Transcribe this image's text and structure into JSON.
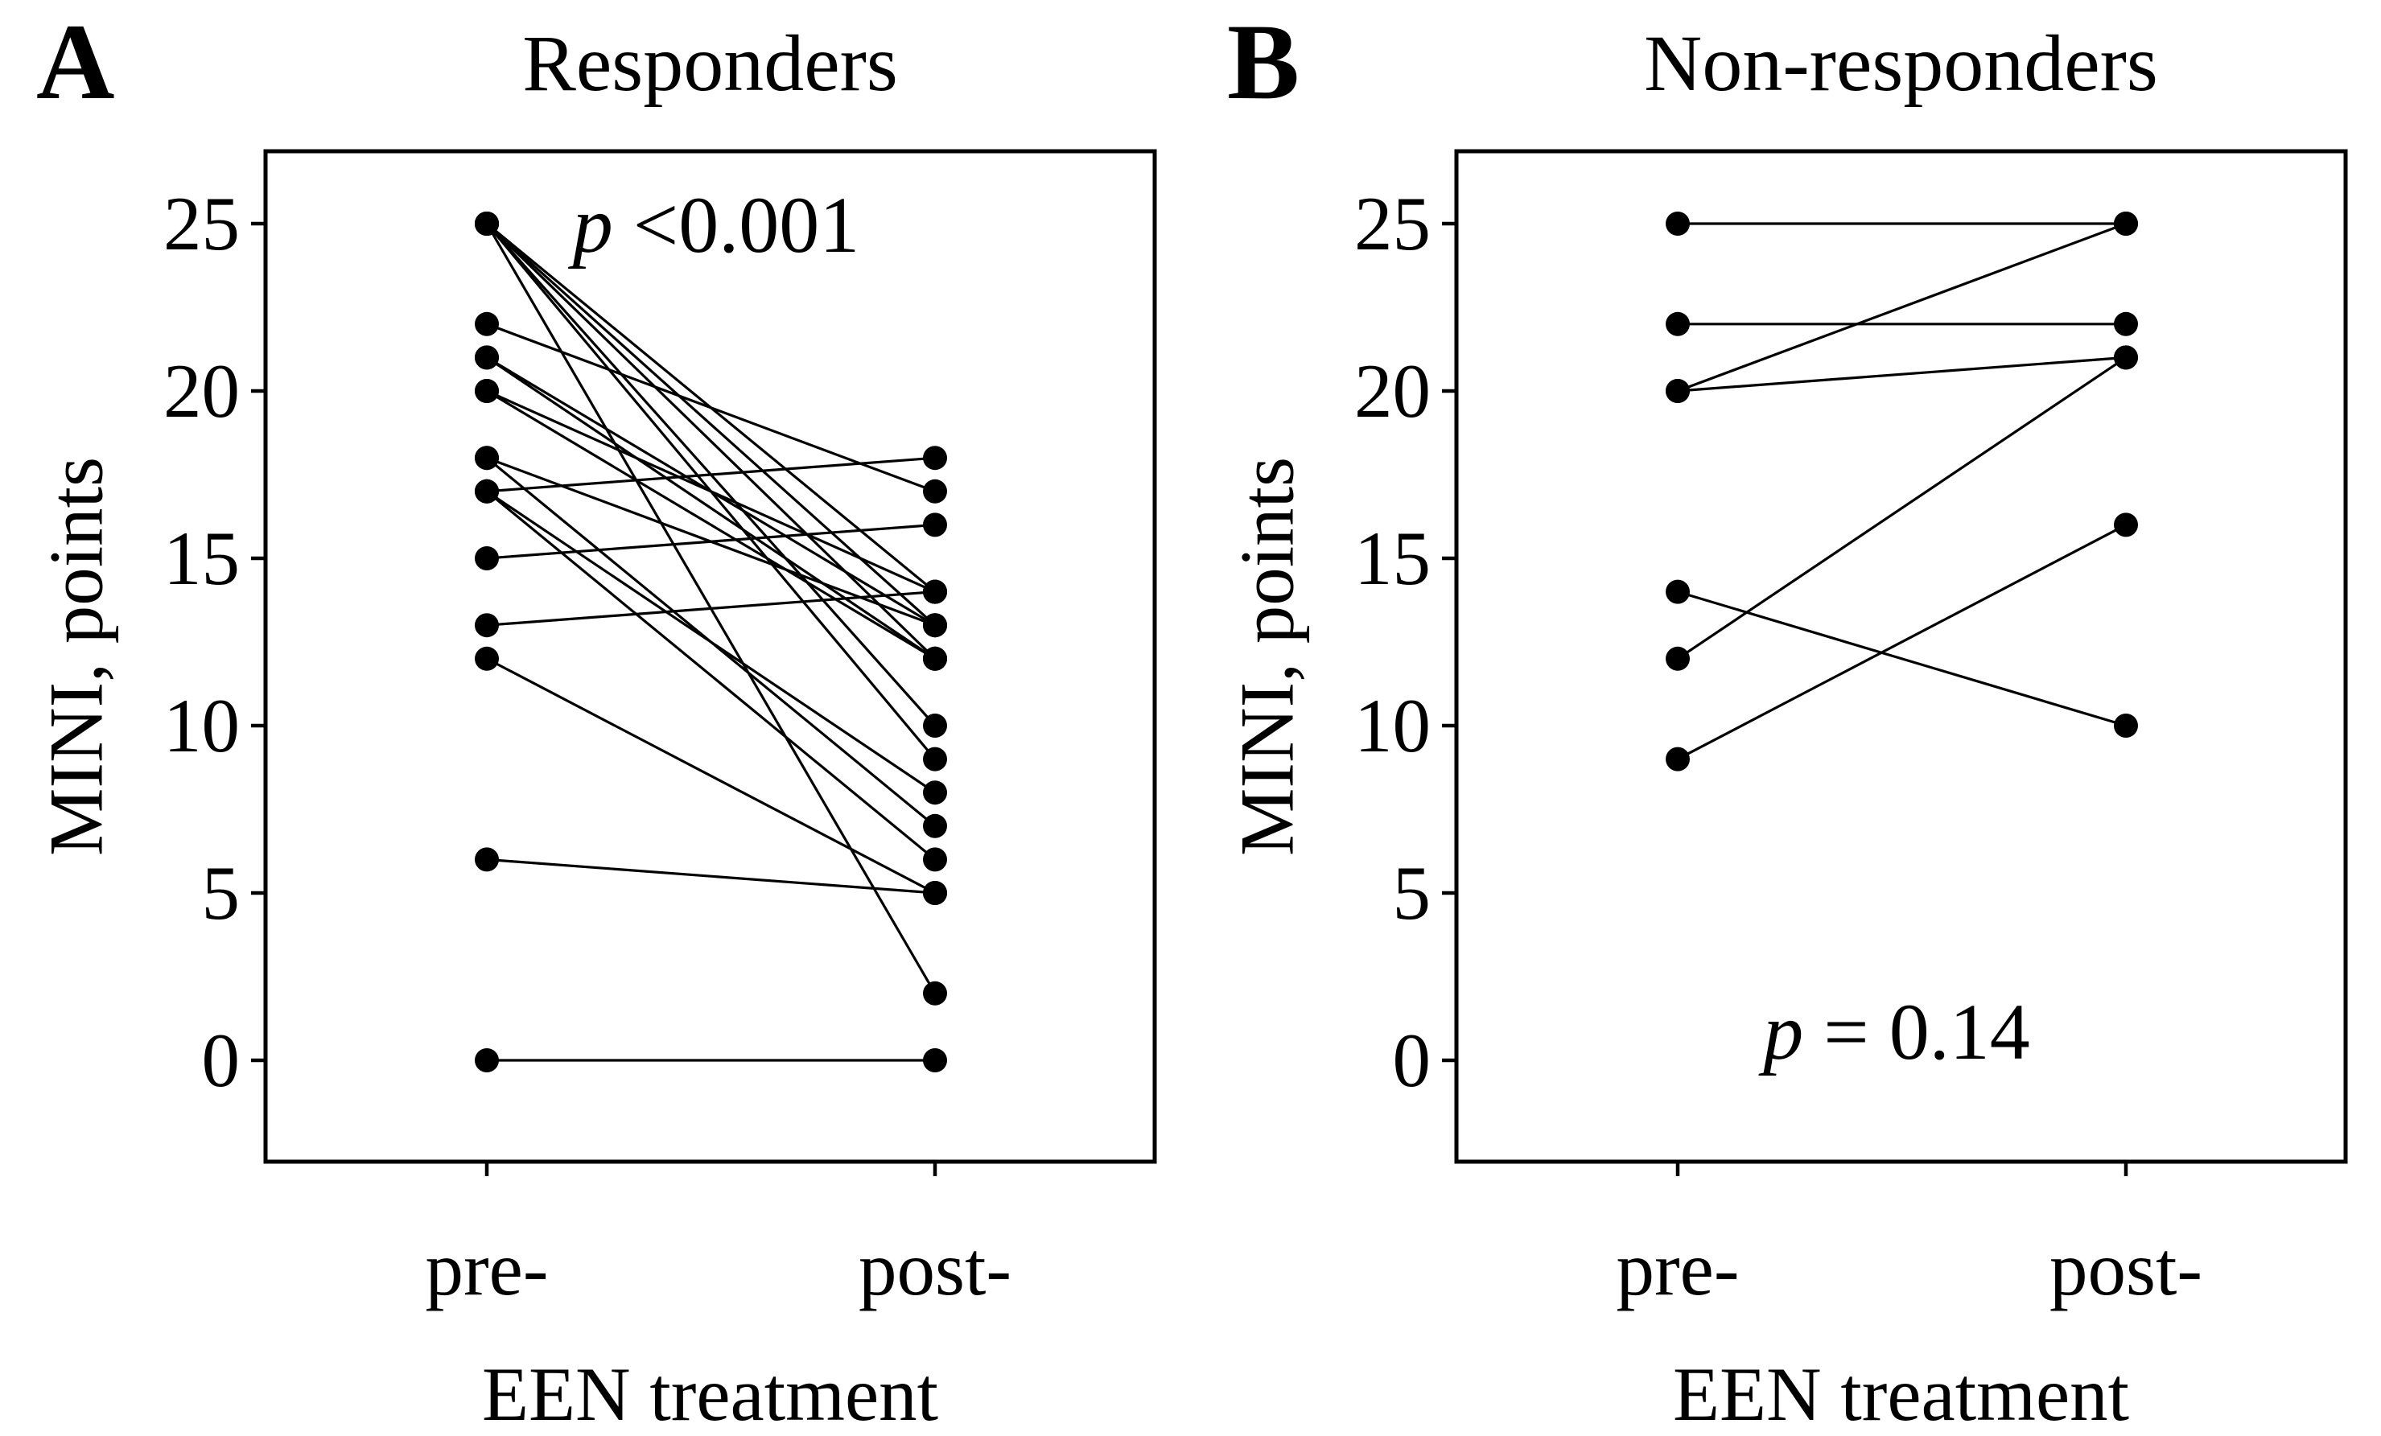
{
  "figure": {
    "background": "#ffffff",
    "ink": "#000000"
  },
  "panels": [
    {
      "letter": "A",
      "title": "Responders",
      "p_symbol": "p",
      "p_rest": " <0.001",
      "y_axis_label": "MINI, points",
      "x_axis_label": "EEN treatment",
      "x_categories": [
        "pre-",
        "post-"
      ],
      "y_tick_labels": [
        "0",
        "5",
        "10",
        "15",
        "20",
        "25"
      ]
    },
    {
      "letter": "B",
      "title": "Non-responders",
      "p_symbol": "p",
      "p_rest": " = 0.14",
      "y_axis_label": "MINI, points",
      "x_axis_label": "EEN treatment",
      "x_categories": [
        "pre-",
        "post-"
      ],
      "y_tick_labels": [
        "0",
        "5",
        "10",
        "15",
        "20",
        "25"
      ]
    }
  ],
  "chart_data": [
    {
      "type": "line",
      "subtype": "paired-slope",
      "title": "Responders",
      "xlabel": "EEN treatment",
      "ylabel": "MINI, points",
      "x_categories": [
        "pre-",
        "post-"
      ],
      "y_ticks": [
        0,
        5,
        10,
        15,
        20,
        25
      ],
      "ylim": [
        -3,
        27.2
      ],
      "grid": false,
      "legend": "none",
      "p_annotation": "p <0.001",
      "pairs": [
        [
          25,
          14
        ],
        [
          25,
          13
        ],
        [
          25,
          12
        ],
        [
          25,
          10
        ],
        [
          25,
          9
        ],
        [
          25,
          2
        ],
        [
          22,
          17
        ],
        [
          21,
          13
        ],
        [
          21,
          12
        ],
        [
          20,
          14
        ],
        [
          20,
          12
        ],
        [
          18,
          13
        ],
        [
          18,
          7
        ],
        [
          17,
          18
        ],
        [
          17,
          8
        ],
        [
          17,
          6
        ],
        [
          15,
          16
        ],
        [
          13,
          14
        ],
        [
          12,
          5
        ],
        [
          6,
          5
        ],
        [
          0,
          0
        ]
      ]
    },
    {
      "type": "line",
      "subtype": "paired-slope",
      "title": "Non-responders",
      "xlabel": "EEN treatment",
      "ylabel": "MINI, points",
      "x_categories": [
        "pre-",
        "post-"
      ],
      "y_ticks": [
        0,
        5,
        10,
        15,
        20,
        25
      ],
      "ylim": [
        -3,
        27.2
      ],
      "grid": false,
      "legend": "none",
      "p_annotation": "p = 0.14",
      "pairs": [
        [
          25,
          25
        ],
        [
          22,
          22
        ],
        [
          20,
          25
        ],
        [
          20,
          21
        ],
        [
          14,
          10
        ],
        [
          12,
          21
        ],
        [
          9,
          16
        ]
      ]
    }
  ]
}
